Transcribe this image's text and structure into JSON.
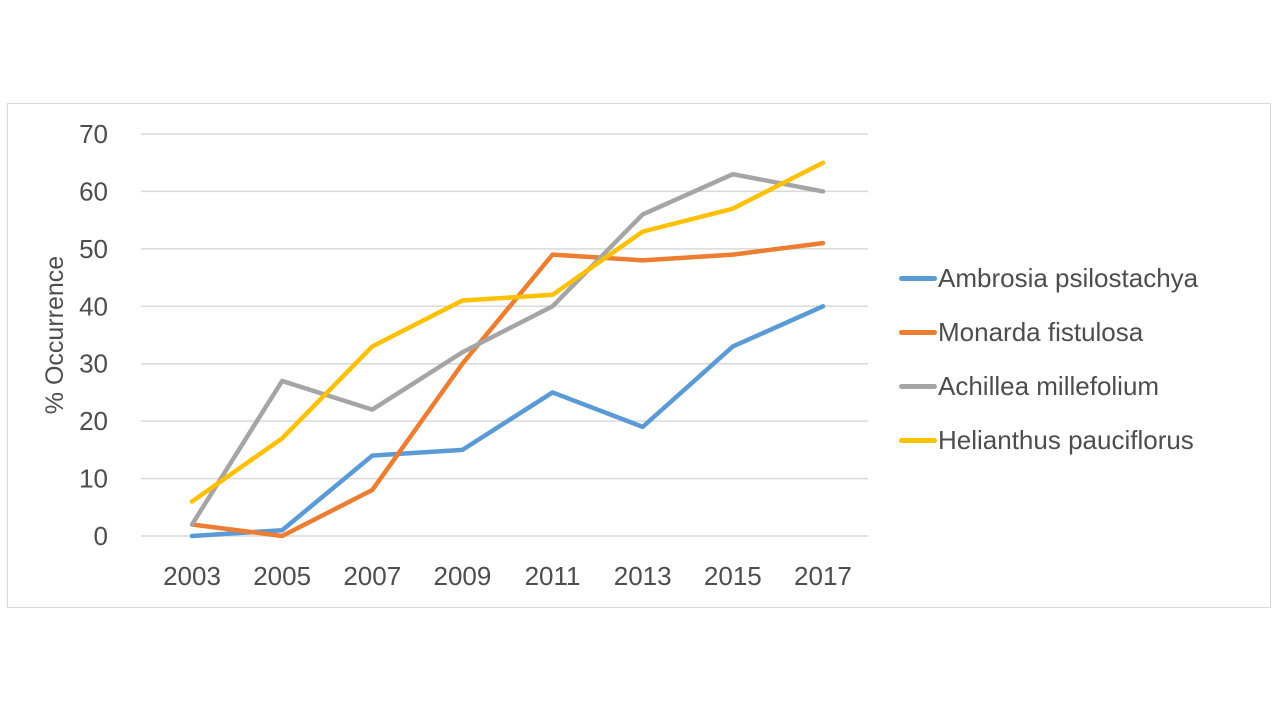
{
  "page": {
    "background": "#ffffff",
    "frame_border_color": "#d9d9d9"
  },
  "chart_data": {
    "type": "line",
    "title": "",
    "xlabel": "",
    "ylabel": "% Occurrence",
    "categories": [
      "2003",
      "2005",
      "2007",
      "2009",
      "2011",
      "2013",
      "2015",
      "2017"
    ],
    "series": [
      {
        "name": "Ambrosia psilostachya",
        "color": "#5B9BD5",
        "values": [
          0,
          1,
          14,
          15,
          25,
          19,
          33,
          40
        ]
      },
      {
        "name": "Monarda fistulosa",
        "color": "#ED7D31",
        "values": [
          2,
          0,
          8,
          30,
          49,
          48,
          49,
          51
        ]
      },
      {
        "name": "Achillea millefolium",
        "color": "#A5A5A5",
        "values": [
          2,
          27,
          22,
          32,
          40,
          56,
          63,
          60
        ]
      },
      {
        "name": "Helianthus pauciflorus",
        "color": "#FFC000",
        "values": [
          6,
          17,
          33,
          41,
          42,
          53,
          57,
          65
        ]
      }
    ],
    "ylim": [
      0,
      70
    ],
    "yticks": [
      0,
      10,
      20,
      30,
      40,
      50,
      60,
      70
    ],
    "grid": true,
    "gridline_color": "#d9d9d9",
    "tick_label_color": "#4d4d4d",
    "legend_position": "right"
  }
}
